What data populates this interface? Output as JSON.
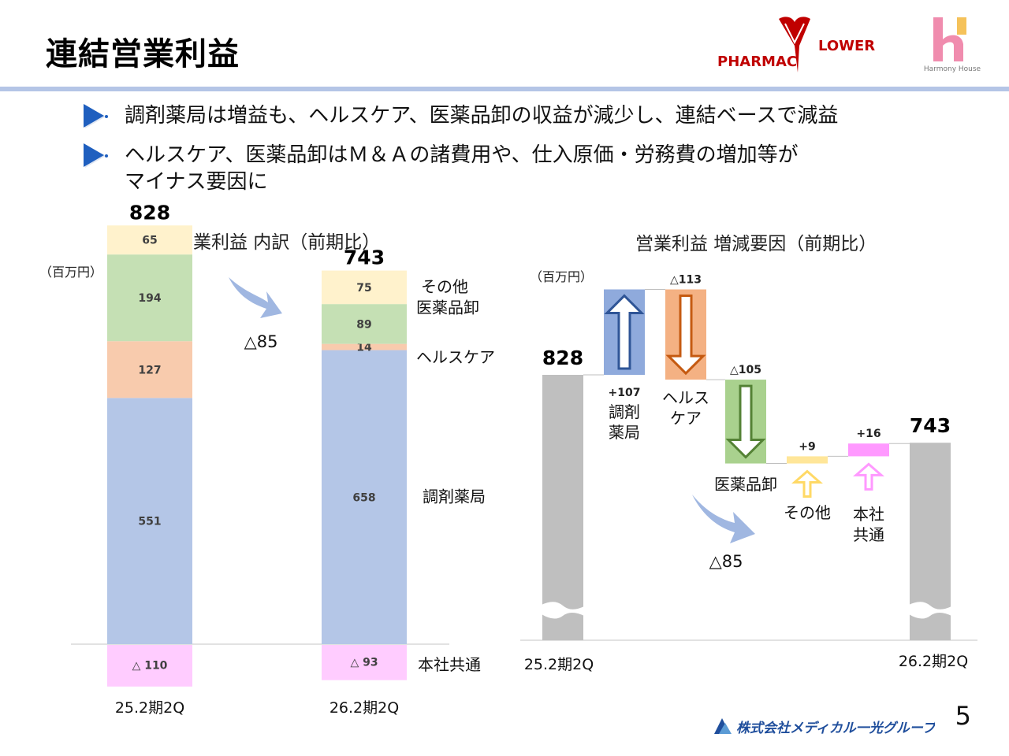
{
  "header": {
    "title": "連結営業利益",
    "logo_pharmacy_left": "PHARMAC",
    "logo_pharmacy_right": "LOWER",
    "logo_harmony": "Harmony House"
  },
  "bullets": [
    {
      "lines": [
        "調剤薬局は増益も、ヘルスケア、医薬品卸の収益が減少し、連結ベースで減益"
      ]
    },
    {
      "lines": [
        "ヘルスケア、医薬品卸はＭ＆Ａの諸費用や、仕入原価・労務費の増加等が",
        "マイナス要因に"
      ]
    }
  ],
  "colors": {
    "pharmacy": "#b4c6e7",
    "healthcare": "#f8cbad",
    "wholesale": "#c5e0b4",
    "other": "#fff2cc",
    "hq": "#ffccff",
    "gray": "#bfbfbf",
    "up_box": "#8faadc",
    "up_arrow": "#2f5597",
    "hc_box": "#f4b183",
    "hc_arrow": "#c55a11",
    "wh_box": "#a9d18e",
    "wh_arrow": "#548235",
    "other_box": "#ffe699",
    "hq_box": "#ff99ff",
    "swoosh": "#8faadc",
    "rule": "#b4c5e6"
  },
  "chart_data": [
    {
      "type": "bar",
      "stacked": true,
      "title": "営業利益 内訳（前期比）",
      "unit": "（百万円）",
      "categories": [
        "25.2期2Q",
        "26.2期2Q"
      ],
      "totals": [
        828,
        743
      ],
      "change_label": "△85",
      "series": [
        {
          "name": "調剤薬局",
          "values": [
            551,
            658
          ],
          "labels": [
            "551",
            "658"
          ]
        },
        {
          "name": "ヘルスケア",
          "values": [
            127,
            14
          ],
          "labels": [
            "127",
            "14"
          ]
        },
        {
          "name": "医薬品卸",
          "values": [
            194,
            89
          ],
          "labels": [
            "194",
            "89"
          ]
        },
        {
          "name": "その他",
          "values": [
            65,
            75
          ],
          "labels": [
            "65",
            "75"
          ]
        },
        {
          "name": "本社共通",
          "values": [
            -110,
            -93
          ],
          "labels": [
            "△ 110",
            "△ 93"
          ]
        }
      ]
    },
    {
      "type": "waterfall",
      "title": "営業利益 増減要因（前期比）",
      "unit": "（百万円）",
      "start": {
        "label": "25.2期2Q",
        "value": 828,
        "value_label": "828"
      },
      "end": {
        "label": "26.2期2Q",
        "value": 743,
        "value_label": "743"
      },
      "steps": [
        {
          "name": "調剤薬局",
          "name_lines": [
            "調剤",
            "薬局"
          ],
          "value": 107,
          "value_label": "+107"
        },
        {
          "name": "ヘルスケア",
          "name_lines": [
            "ヘルス",
            "ケア"
          ],
          "value": -113,
          "value_label": "△113"
        },
        {
          "name": "医薬品卸",
          "name_lines": [
            "医薬品卸"
          ],
          "value": -105,
          "value_label": "△105"
        },
        {
          "name": "その他",
          "name_lines": [
            "その他"
          ],
          "value": 9,
          "value_label": "+9"
        },
        {
          "name": "本社共通",
          "name_lines": [
            "本社",
            "共通"
          ],
          "value": 16,
          "value_label": "+16"
        }
      ],
      "change_label": "△85"
    }
  ],
  "footer": {
    "company": "株式会社メディカル一光グループ",
    "page_number": "5"
  }
}
